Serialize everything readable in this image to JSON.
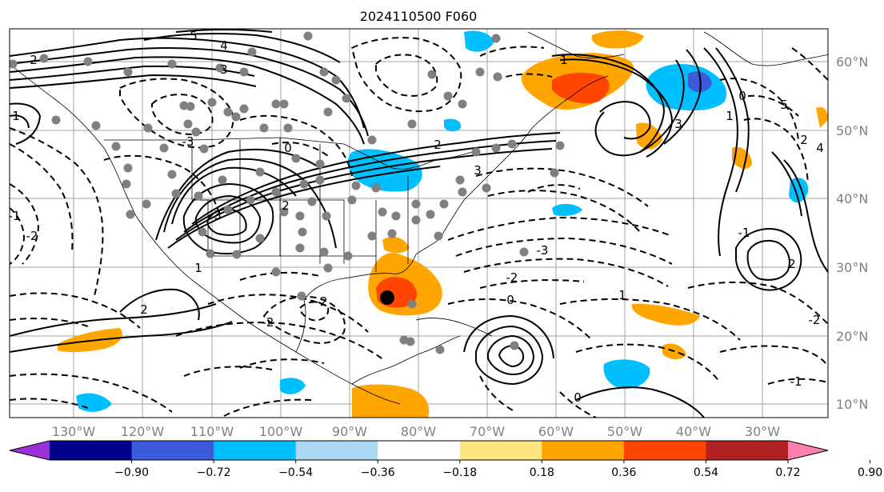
{
  "title": "2024110500 F060",
  "lat_labels": [
    "60°N",
    "50°N",
    "40°N",
    "30°N",
    "20°N",
    "10°N"
  ],
  "lon_labels": [
    "130°W",
    "120°W",
    "110°W",
    "100°W",
    "90°W",
    "80°W",
    "70°W",
    "60°W",
    "50°W",
    "40°W",
    "30°W"
  ],
  "colorbar": {
    "colors": [
      "#9b30d9",
      "#00008b",
      "#3b5bdb",
      "#00bfff",
      "#add8f5",
      "#ffffff",
      "#ffe680",
      "#ffa500",
      "#ff4500",
      "#b22222",
      "#ff80b0"
    ],
    "tick_labels": [
      "−0.90",
      "−0.72",
      "−0.54",
      "−0.36",
      "−0.18",
      "0.18",
      "0.36",
      "0.54",
      "0.72",
      "0.90"
    ]
  },
  "contour_labels": [
    "5",
    "4",
    "3",
    "2",
    "1",
    "0",
    "-2",
    "-1",
    "-3",
    "3",
    "2",
    "1",
    "2",
    "3",
    "2",
    "-2",
    "-3",
    "-2",
    "0",
    "1",
    "0",
    "-1",
    "1",
    "2",
    "3",
    "4",
    "5",
    "-2",
    "-1",
    "0",
    "2",
    "-2",
    "1"
  ],
  "storm_marker": "storm-center",
  "fill_colors": {
    "orange": "#ffa500",
    "red": "#ff4500",
    "lightblue": "#00bfff",
    "blue": "#3b5bdb"
  }
}
